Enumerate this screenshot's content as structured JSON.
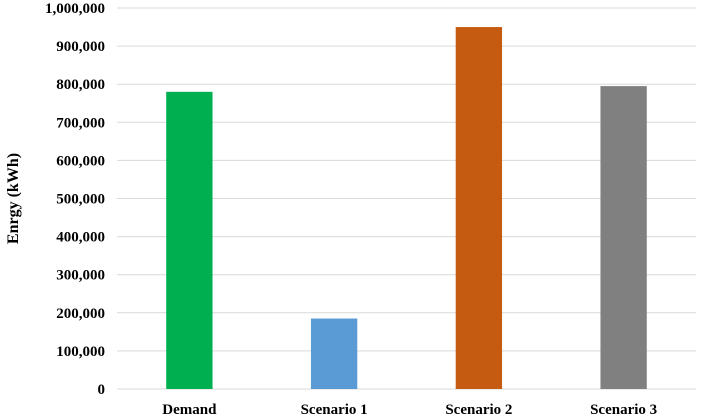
{
  "chart_data": {
    "type": "bar",
    "categories": [
      "Demand",
      "Scenario 1",
      "Scenario 2",
      "Scenario 3"
    ],
    "values": [
      780000,
      185000,
      950000,
      795000
    ],
    "colors": [
      "#00b050",
      "#5b9bd5",
      "#c55a11",
      "#808080"
    ],
    "ylabel": "Enrgy (kWh)",
    "xlabel": "",
    "ylim": [
      0,
      1000000
    ],
    "yticks": [
      0,
      100000,
      200000,
      300000,
      400000,
      500000,
      600000,
      700000,
      800000,
      900000,
      1000000
    ],
    "ytick_labels": [
      "0",
      "100,000",
      "200,000",
      "300,000",
      "400,000",
      "500,000",
      "600,000",
      "700,000",
      "800,000",
      "900,000",
      "1,000,000"
    ],
    "grid": true,
    "legend": "none"
  }
}
